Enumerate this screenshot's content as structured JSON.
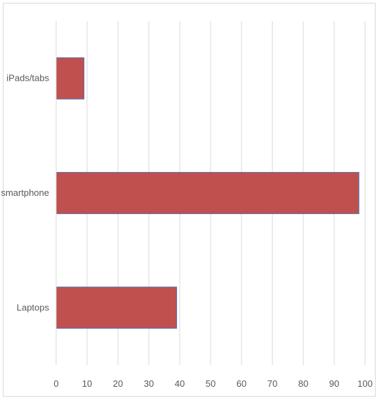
{
  "chart_data": {
    "type": "bar",
    "orientation": "horizontal",
    "categories": [
      "iPads/tabs",
      "smartphone",
      "Laptops"
    ],
    "values": [
      9,
      98,
      39
    ],
    "xlim": [
      0,
      100
    ],
    "xticks": [
      "0",
      "10",
      "20",
      "30",
      "40",
      "50",
      "60",
      "70",
      "80",
      "90",
      "100"
    ],
    "grid": true,
    "bar_color": "#c0504d",
    "bar_edge_color": "#4f6bb0",
    "grid_color": "#d9d9d9"
  }
}
